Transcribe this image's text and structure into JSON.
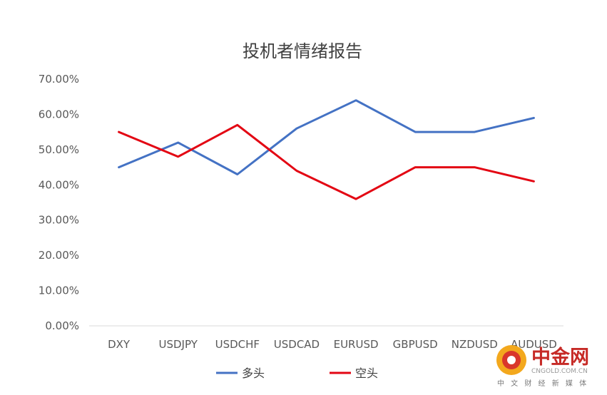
{
  "chart_data": {
    "type": "line",
    "title": "投机者情绪报告",
    "categories": [
      "DXY",
      "USDJPY",
      "USDCHF",
      "USDCAD",
      "EURUSD",
      "GBPUSD",
      "NZDUSD",
      "AUDUSD"
    ],
    "series": [
      {
        "name": "多头",
        "color": "#4472c4",
        "values": [
          45,
          52,
          43,
          56,
          64,
          55,
          55,
          59
        ]
      },
      {
        "name": "空头",
        "color": "#e30613",
        "values": [
          55,
          48,
          57,
          44,
          36,
          45,
          45,
          41
        ]
      }
    ],
    "ylim": [
      0,
      70
    ],
    "yticks": [
      "0.00%",
      "10.00%",
      "20.00%",
      "30.00%",
      "40.00%",
      "50.00%",
      "60.00%",
      "70.00%"
    ],
    "grid": false,
    "legend_position": "bottom"
  },
  "watermark": {
    "name": "中金网",
    "url": "CNGOLD.COM.CN",
    "slogan": "中 文 财 经 新 媒 体",
    "logo_colors": [
      "#f3a81d",
      "#d9362b"
    ]
  }
}
